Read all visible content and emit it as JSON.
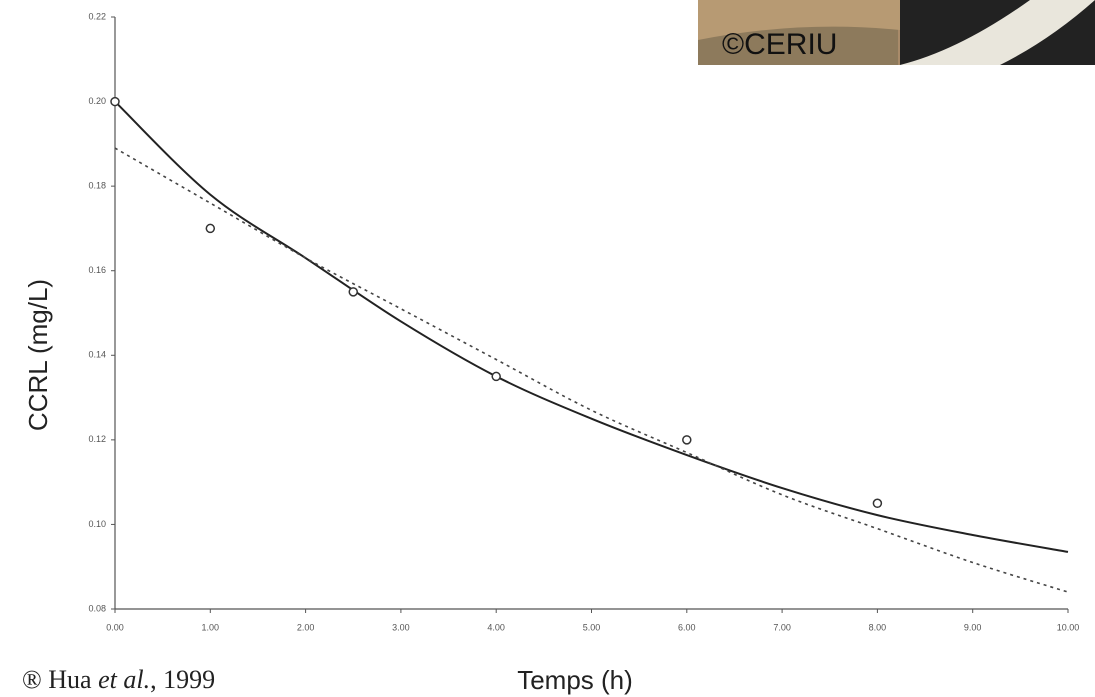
{
  "chart_data": {
    "type": "scatter",
    "y_label": "CCRL (mg/L)",
    "x_label": "Temps (h)",
    "source": [
      "® Hua ",
      "et al.",
      ", 1999"
    ],
    "watermark": "©CERIU",
    "xlim": [
      0,
      10
    ],
    "ylim": [
      0.08,
      0.22
    ],
    "xticks": [
      {
        "value": 0,
        "label": "0.00"
      },
      {
        "value": 1,
        "label": "1.00"
      },
      {
        "value": 2,
        "label": "2.00"
      },
      {
        "value": 3,
        "label": "3.00"
      },
      {
        "value": 4,
        "label": "4.00"
      },
      {
        "value": 5,
        "label": "5.00"
      },
      {
        "value": 6,
        "label": "6.00"
      },
      {
        "value": 7,
        "label": "7.00"
      },
      {
        "value": 8,
        "label": "8.00"
      },
      {
        "value": 9,
        "label": "9.00"
      },
      {
        "value": 10,
        "label": "10.00"
      }
    ],
    "yticks": [
      0.08,
      {
        "value": 0.1,
        "label": "0.10"
      },
      0.12,
      0.14,
      0.16,
      0.18,
      {
        "value": 0.2,
        "label": "0.20"
      },
      0.22
    ],
    "series": [
      {
        "type": "scatter",
        "color": "#333333",
        "x": [
          0,
          1,
          2.5,
          4,
          6,
          8
        ],
        "values": [
          0.2,
          0.17,
          0.155,
          0.135,
          0.12,
          0.105
        ]
      },
      {
        "type": "line",
        "style": "solid",
        "color": "#222222",
        "x": [
          0,
          1,
          2,
          3,
          4,
          5,
          6,
          7,
          8,
          9,
          10
        ],
        "values": [
          0.2,
          0.178,
          0.163,
          0.148,
          0.135,
          0.125,
          0.1164,
          0.1086,
          0.1022,
          0.0975,
          0.0935
        ]
      },
      {
        "type": "line",
        "style": "dotted",
        "color": "#444444",
        "x": [
          0,
          1,
          2,
          3,
          4,
          5,
          6,
          7,
          8,
          9,
          10
        ],
        "values": [
          0.189,
          0.176,
          0.163,
          0.151,
          0.139,
          0.127,
          0.117,
          0.107,
          0.099,
          0.091,
          0.084
        ]
      }
    ]
  }
}
